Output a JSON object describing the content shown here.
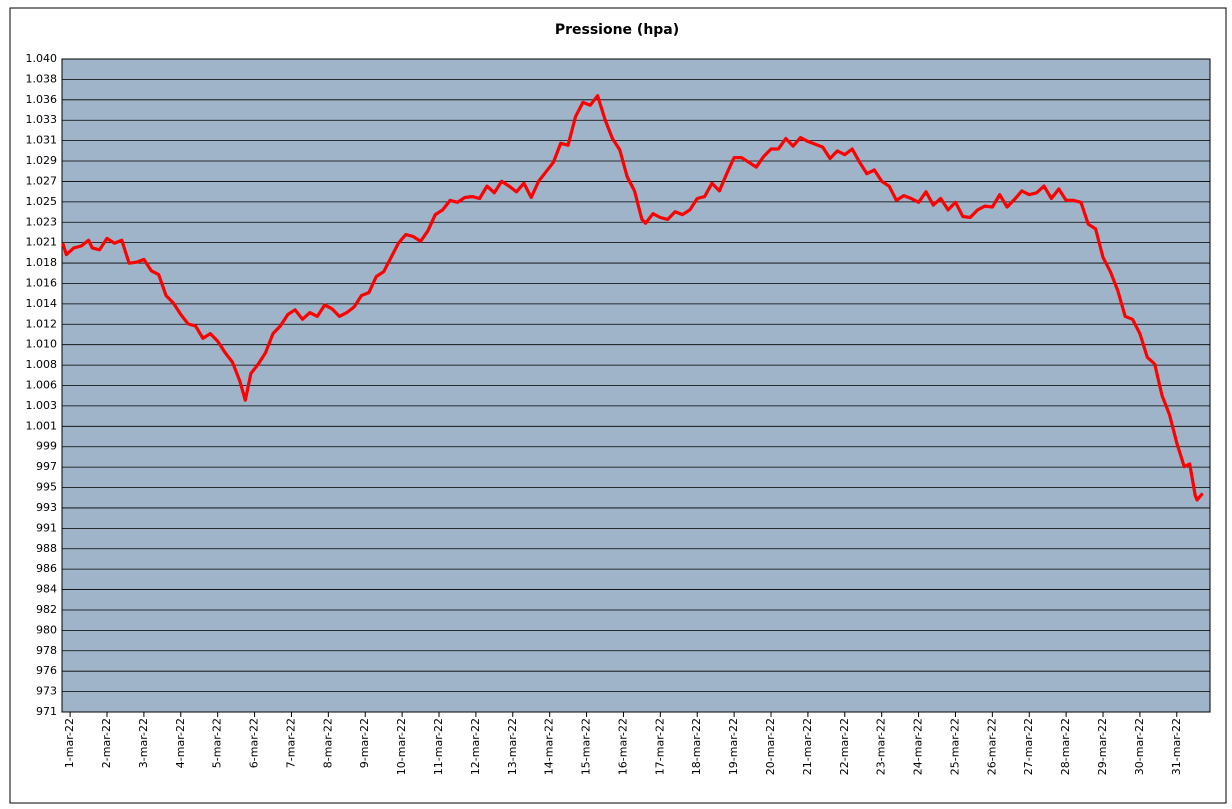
{
  "chart_data": {
    "type": "line",
    "title": "Pressione (hpa)",
    "color": "#ff0000",
    "plot_background": "#9fb4c8",
    "grid": true,
    "xlim": [
      0.78,
      31.9
    ],
    "ylim": [
      971.22,
      1039.86
    ],
    "xticks": [
      {
        "value": 1,
        "label": "1-mar-22"
      },
      {
        "value": 2,
        "label": "2-mar-22"
      },
      {
        "value": 3,
        "label": "3-mar-22"
      },
      {
        "value": 4,
        "label": "4-mar-22"
      },
      {
        "value": 5,
        "label": "5-mar-22"
      },
      {
        "value": 6,
        "label": "6-mar-22"
      },
      {
        "value": 7,
        "label": "7-mar-22"
      },
      {
        "value": 8,
        "label": "8-mar-22"
      },
      {
        "value": 9,
        "label": "9-mar-22"
      },
      {
        "value": 10,
        "label": "10-mar-22"
      },
      {
        "value": 11,
        "label": "11-mar-22"
      },
      {
        "value": 12,
        "label": "12-mar-22"
      },
      {
        "value": 13,
        "label": "13-mar-22"
      },
      {
        "value": 14,
        "label": "14-mar-22"
      },
      {
        "value": 15,
        "label": "15-mar-22"
      },
      {
        "value": 16,
        "label": "16-mar-22"
      },
      {
        "value": 17,
        "label": "17-mar-22"
      },
      {
        "value": 18,
        "label": "18-mar-22"
      },
      {
        "value": 19,
        "label": "19-mar-22"
      },
      {
        "value": 20,
        "label": "20-mar-22"
      },
      {
        "value": 21,
        "label": "21-mar-22"
      },
      {
        "value": 22,
        "label": "22-mar-22"
      },
      {
        "value": 23,
        "label": "23-mar-22"
      },
      {
        "value": 24,
        "label": "24-mar-22"
      },
      {
        "value": 25,
        "label": "25-mar-22"
      },
      {
        "value": 26,
        "label": "26-mar-22"
      },
      {
        "value": 27,
        "label": "27-mar-22"
      },
      {
        "value": 28,
        "label": "28-mar-22"
      },
      {
        "value": 29,
        "label": "29-mar-22"
      },
      {
        "value": 30,
        "label": "30-mar-22"
      },
      {
        "value": 31,
        "label": "31-mar-22"
      }
    ],
    "yticks": [
      {
        "value": 971.22,
        "label": "971"
      },
      {
        "value": 973.365,
        "label": "973"
      },
      {
        "value": 975.51,
        "label": "976"
      },
      {
        "value": 977.655,
        "label": "978"
      },
      {
        "value": 979.8,
        "label": "980"
      },
      {
        "value": 981.945,
        "label": "982"
      },
      {
        "value": 984.09,
        "label": "984"
      },
      {
        "value": 986.235,
        "label": "986"
      },
      {
        "value": 988.38,
        "label": "988"
      },
      {
        "value": 990.525,
        "label": "991"
      },
      {
        "value": 992.67,
        "label": "993"
      },
      {
        "value": 994.815,
        "label": "995"
      },
      {
        "value": 996.96,
        "label": "997"
      },
      {
        "value": 999.105,
        "label": "999"
      },
      {
        "value": 1001.25,
        "label": "1.001"
      },
      {
        "value": 1003.395,
        "label": "1.003"
      },
      {
        "value": 1005.54,
        "label": "1.006"
      },
      {
        "value": 1007.685,
        "label": "1.008"
      },
      {
        "value": 1009.83,
        "label": "1.010"
      },
      {
        "value": 1011.975,
        "label": "1.012"
      },
      {
        "value": 1014.12,
        "label": "1.014"
      },
      {
        "value": 1016.265,
        "label": "1.016"
      },
      {
        "value": 1018.41,
        "label": "1.018"
      },
      {
        "value": 1020.555,
        "label": "1.021"
      },
      {
        "value": 1022.7,
        "label": "1.023"
      },
      {
        "value": 1024.845,
        "label": "1.025"
      },
      {
        "value": 1026.99,
        "label": "1.027"
      },
      {
        "value": 1029.135,
        "label": "1.029"
      },
      {
        "value": 1031.28,
        "label": "1.031"
      },
      {
        "value": 1033.425,
        "label": "1.033"
      },
      {
        "value": 1035.57,
        "label": "1.036"
      },
      {
        "value": 1037.715,
        "label": "1.038"
      },
      {
        "value": 1039.86,
        "label": "1.040"
      }
    ],
    "x": [
      0.8,
      0.9,
      1.1,
      1.3,
      1.5,
      1.6,
      1.8,
      2.0,
      2.2,
      2.4,
      2.6,
      2.8,
      3.0,
      3.2,
      3.4,
      3.6,
      3.8,
      4.0,
      4.2,
      4.4,
      4.6,
      4.8,
      5.0,
      5.2,
      5.4,
      5.6,
      5.75,
      5.9,
      6.1,
      6.3,
      6.5,
      6.7,
      6.9,
      7.1,
      7.3,
      7.5,
      7.7,
      7.9,
      8.1,
      8.3,
      8.5,
      8.7,
      8.9,
      9.1,
      9.3,
      9.5,
      9.7,
      9.9,
      10.1,
      10.3,
      10.5,
      10.7,
      10.9,
      11.1,
      11.3,
      11.5,
      11.7,
      11.9,
      12.1,
      12.3,
      12.5,
      12.7,
      12.9,
      13.1,
      13.3,
      13.5,
      13.7,
      13.9,
      14.1,
      14.3,
      14.5,
      14.7,
      14.9,
      15.1,
      15.3,
      15.5,
      15.7,
      15.9,
      16.1,
      16.3,
      16.5,
      16.6,
      16.8,
      17.0,
      17.2,
      17.4,
      17.6,
      17.8,
      18.0,
      18.2,
      18.4,
      18.6,
      18.8,
      19.0,
      19.2,
      19.4,
      19.6,
      19.8,
      20.0,
      20.2,
      20.4,
      20.6,
      20.8,
      21.0,
      21.2,
      21.4,
      21.6,
      21.8,
      22.0,
      22.2,
      22.4,
      22.6,
      22.8,
      23.0,
      23.2,
      23.4,
      23.6,
      23.8,
      24.0,
      24.2,
      24.4,
      24.6,
      24.8,
      25.0,
      25.2,
      25.4,
      25.6,
      25.8,
      26.0,
      26.2,
      26.4,
      26.6,
      26.8,
      27.0,
      27.2,
      27.4,
      27.6,
      27.8,
      28.0,
      28.2,
      28.4,
      28.6,
      28.8,
      29.0,
      29.2,
      29.4,
      29.6,
      29.8,
      30.0,
      30.2,
      30.4,
      30.6,
      30.8,
      31.0,
      31.2,
      31.35,
      31.5,
      31.55,
      31.7
    ],
    "values": [
      1020.5,
      1019.3,
      1020.0,
      1020.2,
      1020.8,
      1020.0,
      1019.8,
      1021.0,
      1020.5,
      1020.8,
      1018.4,
      1018.5,
      1018.8,
      1017.6,
      1017.2,
      1015.0,
      1014.2,
      1013.0,
      1012.0,
      1011.8,
      1010.5,
      1011.0,
      1010.2,
      1009.0,
      1008.0,
      1006.0,
      1004.0,
      1006.8,
      1007.8,
      1009.0,
      1011.0,
      1011.8,
      1013.0,
      1013.5,
      1012.5,
      1013.2,
      1012.8,
      1014.0,
      1013.6,
      1012.8,
      1013.2,
      1013.8,
      1015.0,
      1015.3,
      1017.0,
      1017.5,
      1019.0,
      1020.5,
      1021.4,
      1021.2,
      1020.7,
      1021.8,
      1023.5,
      1024.0,
      1025.0,
      1024.8,
      1025.3,
      1025.4,
      1025.2,
      1026.5,
      1025.8,
      1027.0,
      1026.5,
      1025.9,
      1026.8,
      1025.3,
      1027.0,
      1028.0,
      1029.0,
      1031.0,
      1030.8,
      1033.8,
      1035.3,
      1035.0,
      1036.0,
      1033.5,
      1031.5,
      1030.3,
      1027.5,
      1026.0,
      1023.0,
      1022.6,
      1023.6,
      1023.2,
      1023.0,
      1023.8,
      1023.5,
      1024.0,
      1025.2,
      1025.4,
      1026.8,
      1026.0,
      1027.8,
      1029.5,
      1029.5,
      1029.0,
      1028.5,
      1029.6,
      1030.4,
      1030.4,
      1031.5,
      1030.7,
      1031.6,
      1031.2,
      1030.9,
      1030.6,
      1029.4,
      1030.2,
      1029.8,
      1030.4,
      1029.0,
      1027.8,
      1028.2,
      1027.0,
      1026.5,
      1025.0,
      1025.5,
      1025.2,
      1024.8,
      1025.9,
      1024.5,
      1025.2,
      1024.0,
      1024.8,
      1023.3,
      1023.2,
      1024.0,
      1024.4,
      1024.3,
      1025.6,
      1024.3,
      1025.1,
      1026.0,
      1025.6,
      1025.8,
      1026.5,
      1025.2,
      1026.2,
      1025.0,
      1025.0,
      1024.8,
      1022.5,
      1022.0,
      1019.0,
      1017.5,
      1015.5,
      1012.8,
      1012.5,
      1011.0,
      1008.5,
      1007.8,
      1004.5,
      1002.5,
      999.5,
      997.0,
      997.3,
      994.0,
      993.5,
      994.2
    ]
  }
}
